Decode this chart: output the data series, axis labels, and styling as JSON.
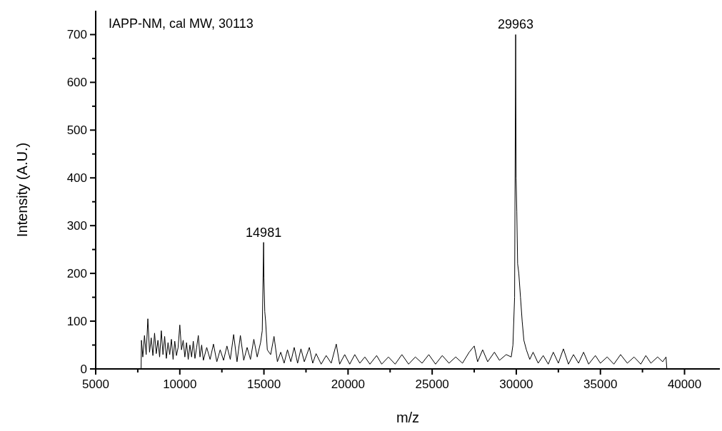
{
  "chart_data": {
    "type": "line",
    "xlabel": "m/z",
    "ylabel": "Intensity (A.U.)",
    "color": "#000000",
    "line_style": "solid",
    "annotations": [
      "IAPP-NM, cal MW, 30113",
      {
        "text": "14981",
        "x": 14981,
        "y": 265
      },
      {
        "text": "29963",
        "x": 29963,
        "y": 700
      }
    ],
    "xlim": [
      5000,
      42100
    ],
    "ylim": [
      0,
      750
    ],
    "xticks": [
      5000,
      {
        "value": 7500,
        "label": null
      },
      10000,
      {
        "value": 12500,
        "label": null
      },
      15000,
      {
        "value": 17500,
        "label": null
      },
      20000,
      {
        "value": 22500,
        "label": null
      },
      25000,
      {
        "value": 27500,
        "label": null
      },
      30000,
      {
        "value": 32500,
        "label": null
      },
      35000,
      {
        "value": 37500,
        "label": null
      },
      40000
    ],
    "yticks": [
      0,
      {
        "value": 50,
        "label": null
      },
      100,
      {
        "value": 150,
        "label": null
      },
      200,
      {
        "value": 250,
        "label": null
      },
      300,
      {
        "value": 350,
        "label": null
      },
      400,
      {
        "value": 450,
        "label": null
      },
      500,
      {
        "value": 550,
        "label": null
      },
      600,
      {
        "value": 650,
        "label": null
      },
      700
    ],
    "x": [
      7700,
      7720,
      7800,
      7900,
      8000,
      8100,
      8200,
      8300,
      8400,
      8500,
      8600,
      8700,
      8800,
      8900,
      9000,
      9100,
      9200,
      9300,
      9400,
      9500,
      9600,
      9700,
      9800,
      9900,
      10000,
      10100,
      10200,
      10300,
      10400,
      10500,
      10600,
      10700,
      10800,
      10900,
      11000,
      11100,
      11200,
      11300,
      11400,
      11600,
      11800,
      12000,
      12200,
      12400,
      12600,
      12800,
      13000,
      13200,
      13400,
      13600,
      13800,
      14000,
      14200,
      14400,
      14600,
      14800,
      14900,
      14981,
      15000,
      15050,
      15100,
      15200,
      15400,
      15600,
      15800,
      16000,
      16200,
      16400,
      16600,
      16800,
      17000,
      17200,
      17400,
      17700,
      17900,
      18100,
      18400,
      18700,
      19000,
      19300,
      19500,
      19800,
      20100,
      20400,
      20700,
      21000,
      21300,
      21700,
      22000,
      22400,
      22800,
      23200,
      23600,
      24000,
      24400,
      24800,
      25200,
      25600,
      26000,
      26400,
      26800,
      27200,
      27500,
      27700,
      28000,
      28300,
      28700,
      29000,
      29400,
      29700,
      29800,
      29900,
      29963,
      29990,
      30030,
      30080,
      30150,
      30250,
      30350,
      30450,
      30600,
      30800,
      31000,
      31300,
      31600,
      31900,
      32200,
      32500,
      32800,
      33100,
      33400,
      33700,
      34000,
      34300,
      34700,
      35000,
      35400,
      35800,
      36200,
      36600,
      37000,
      37400,
      37700,
      38000,
      38400,
      38700,
      38900,
      38950
    ],
    "values": [
      0,
      60,
      25,
      70,
      30,
      105,
      35,
      65,
      28,
      75,
      32,
      60,
      25,
      80,
      30,
      68,
      22,
      55,
      30,
      62,
      20,
      58,
      28,
      45,
      92,
      40,
      60,
      25,
      55,
      20,
      50,
      25,
      58,
      22,
      45,
      70,
      25,
      50,
      18,
      45,
      20,
      52,
      15,
      40,
      18,
      48,
      20,
      72,
      15,
      70,
      18,
      45,
      20,
      62,
      25,
      55,
      80,
      265,
      190,
      120,
      100,
      40,
      30,
      68,
      15,
      35,
      12,
      40,
      15,
      45,
      12,
      42,
      15,
      45,
      12,
      32,
      10,
      28,
      12,
      52,
      10,
      30,
      10,
      30,
      12,
      25,
      10,
      28,
      10,
      25,
      10,
      30,
      10,
      25,
      12,
      30,
      10,
      28,
      12,
      25,
      12,
      35,
      48,
      15,
      40,
      15,
      35,
      18,
      30,
      25,
      50,
      150,
      700,
      400,
      330,
      220,
      200,
      150,
      100,
      60,
      40,
      20,
      35,
      12,
      28,
      10,
      35,
      12,
      42,
      10,
      30,
      12,
      35,
      10,
      28,
      12,
      25,
      10,
      30,
      12,
      25,
      10,
      28,
      12,
      25,
      15,
      25,
      0
    ]
  }
}
